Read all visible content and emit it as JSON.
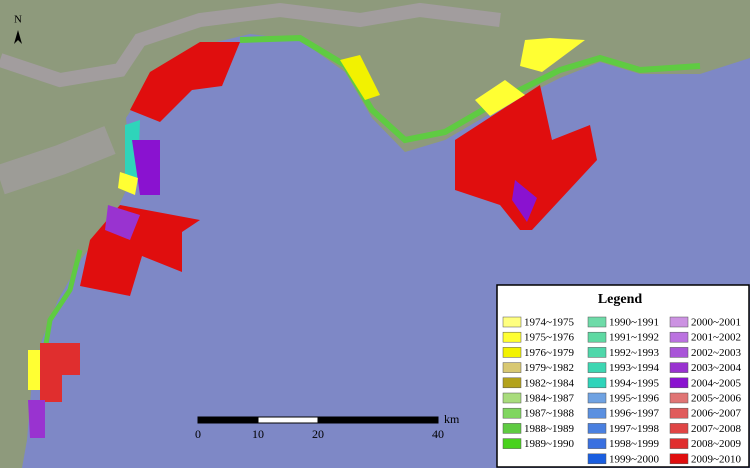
{
  "map": {
    "north": "N",
    "legend": {
      "title": "Legend",
      "items": [
        {
          "label": "1974~1975",
          "color": "#ffff80"
        },
        {
          "label": "1975~1976",
          "color": "#ffff33"
        },
        {
          "label": "1976~1979",
          "color": "#f2f200"
        },
        {
          "label": "1979~1982",
          "color": "#d8c872"
        },
        {
          "label": "1982~1984",
          "color": "#b3a21c"
        },
        {
          "label": "1984~1987",
          "color": "#a8dc7c"
        },
        {
          "label": "1987~1988",
          "color": "#80d660"
        },
        {
          "label": "1988~1989",
          "color": "#5fcb42"
        },
        {
          "label": "1989~1990",
          "color": "#48d21c"
        },
        {
          "label": "1990~1991",
          "color": "#6edba8"
        },
        {
          "label": "1991~1992",
          "color": "#5ed9a2"
        },
        {
          "label": "1992~1993",
          "color": "#4fd7aa"
        },
        {
          "label": "1993~1994",
          "color": "#3dd6b2"
        },
        {
          "label": "1994~1995",
          "color": "#2fd4ba"
        },
        {
          "label": "1995~1996",
          "color": "#6fa2e2"
        },
        {
          "label": "1996~1997",
          "color": "#5b90e0"
        },
        {
          "label": "1997~1998",
          "color": "#4a80e0"
        },
        {
          "label": "1998~1999",
          "color": "#3a70e0"
        },
        {
          "label": "1999~2000",
          "color": "#1a5ee0"
        },
        {
          "label": "2000~2001",
          "color": "#cc92e2"
        },
        {
          "label": "2001~2002",
          "color": "#bb72e0"
        },
        {
          "label": "2002~2003",
          "color": "#a955d8"
        },
        {
          "label": "2003~2004",
          "color": "#9933d0"
        },
        {
          "label": "2004~2005",
          "color": "#8a12d0"
        },
        {
          "label": "2005~2006",
          "color": "#e07575"
        },
        {
          "label": "2006~2007",
          "color": "#e05c5c"
        },
        {
          "label": "2007~2008",
          "color": "#e04545"
        },
        {
          "label": "2008~2009",
          "color": "#e02e2e"
        },
        {
          "label": "2009~2010",
          "color": "#e00e0e"
        }
      ]
    },
    "scale_bar": {
      "unit": "km",
      "ticks": [
        0,
        10,
        20,
        40
      ]
    }
  }
}
